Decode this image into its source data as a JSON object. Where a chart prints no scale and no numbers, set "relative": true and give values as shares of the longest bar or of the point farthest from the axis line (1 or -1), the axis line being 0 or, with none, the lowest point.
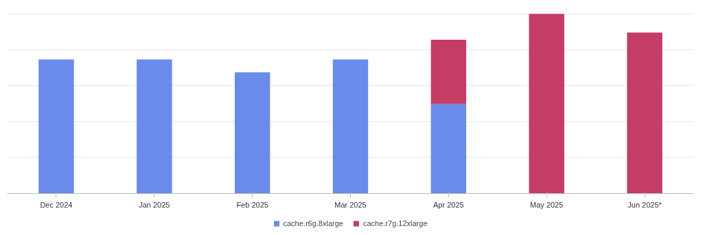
{
  "chart_data": {
    "type": "bar",
    "relative": true,
    "stacked": true,
    "categories": [
      "Dec 2024",
      "Jan 2025",
      "Feb 2025",
      "Mar 2025",
      "Apr 2025",
      "May 2025",
      "Jun 2025*"
    ],
    "series": [
      {
        "name": "cache.r6g.8xlarge",
        "color": "#6a8bea",
        "values": [
          0.746,
          0.746,
          0.674,
          0.746,
          0.498,
          null,
          null
        ]
      },
      {
        "name": "cache.r7g.12xlarge",
        "color": "#c33d66",
        "values": [
          null,
          null,
          null,
          null,
          0.358,
          1,
          0.896
        ]
      }
    ],
    "grid": "y",
    "legend": "bottom"
  }
}
